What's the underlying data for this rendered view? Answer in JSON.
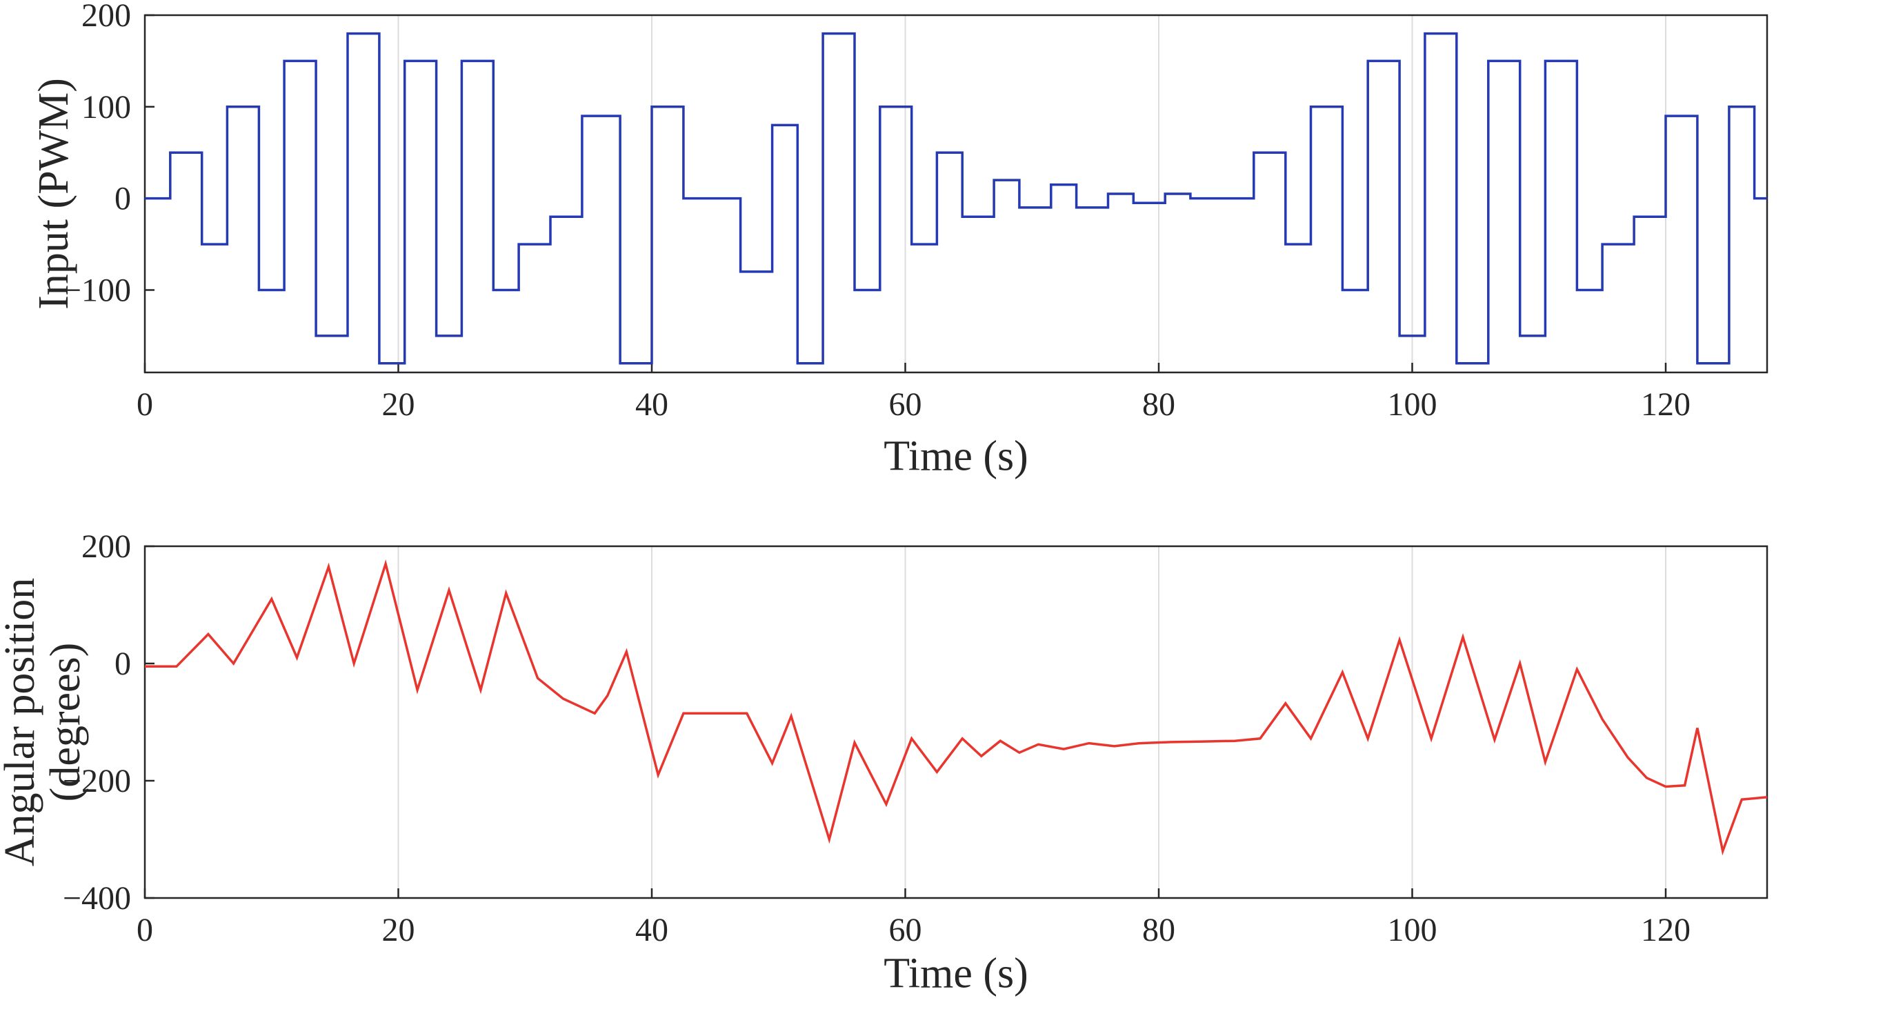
{
  "figure_background": "#ffffff",
  "style": {
    "axis_color": "#262626",
    "grid_color": "#dcdcdc",
    "tick_label_color": "#262626",
    "tick_font_size": 48
  },
  "chart_data": [
    {
      "type": "line",
      "subplot": "top",
      "line_style": "step",
      "line_color": "#2439b2",
      "xlabel": "Time (s)",
      "ylabel": [
        "Input (PWM)"
      ],
      "xlim": [
        0,
        128
      ],
      "ylim": [
        -190,
        200
      ],
      "xticks": [
        0,
        20,
        40,
        60,
        80,
        100,
        120
      ],
      "yticks": [
        -100,
        0,
        100,
        200
      ],
      "grid": "vertical",
      "legend": "none",
      "series": [
        {
          "name": "input_pwm",
          "step_points": [
            [
              0,
              0
            ],
            [
              2,
              50
            ],
            [
              4.5,
              -50
            ],
            [
              6.5,
              100
            ],
            [
              9,
              -100
            ],
            [
              11,
              150
            ],
            [
              13.5,
              -150
            ],
            [
              16,
              180
            ],
            [
              18.5,
              -180
            ],
            [
              20.5,
              150
            ],
            [
              23,
              -150
            ],
            [
              25,
              150
            ],
            [
              27.5,
              -100
            ],
            [
              29.5,
              -50
            ],
            [
              32,
              -20
            ],
            [
              34.5,
              90
            ],
            [
              37.5,
              -180
            ],
            [
              40,
              100
            ],
            [
              42.5,
              0
            ],
            [
              47,
              -80
            ],
            [
              49.5,
              80
            ],
            [
              51.5,
              -180
            ],
            [
              53.5,
              180
            ],
            [
              56,
              -100
            ],
            [
              58,
              100
            ],
            [
              60.5,
              -50
            ],
            [
              62.5,
              50
            ],
            [
              64.5,
              -20
            ],
            [
              67,
              20
            ],
            [
              69,
              -10
            ],
            [
              71.5,
              15
            ],
            [
              73.5,
              -10
            ],
            [
              76,
              5
            ],
            [
              78,
              -5
            ],
            [
              80.5,
              5
            ],
            [
              82.5,
              0
            ],
            [
              87.5,
              50
            ],
            [
              90,
              -50
            ],
            [
              92,
              100
            ],
            [
              94.5,
              -100
            ],
            [
              96.5,
              150
            ],
            [
              99,
              -150
            ],
            [
              101,
              180
            ],
            [
              103.5,
              -180
            ],
            [
              106,
              150
            ],
            [
              108.5,
              -150
            ],
            [
              110.5,
              150
            ],
            [
              113,
              -100
            ],
            [
              115,
              -50
            ],
            [
              117.5,
              -20
            ],
            [
              120,
              90
            ],
            [
              122.5,
              -180
            ],
            [
              125,
              100
            ],
            [
              127,
              0
            ]
          ]
        }
      ]
    },
    {
      "type": "line",
      "subplot": "bottom",
      "line_style": "linear",
      "line_color": "#e8362e",
      "xlabel": "Time (s)",
      "ylabel": [
        "Angular position",
        "(degrees)"
      ],
      "xlim": [
        0,
        128
      ],
      "ylim": [
        -400,
        200
      ],
      "xticks": [
        0,
        20,
        40,
        60,
        80,
        100,
        120
      ],
      "yticks": [
        -400,
        -200,
        0,
        200
      ],
      "grid": "vertical",
      "legend": "none",
      "series": [
        {
          "name": "angular_position_deg",
          "points": [
            [
              0,
              -5
            ],
            [
              2.5,
              -5
            ],
            [
              5,
              50
            ],
            [
              7,
              0
            ],
            [
              10,
              110
            ],
            [
              12,
              10
            ],
            [
              14.5,
              165
            ],
            [
              16.5,
              0
            ],
            [
              19,
              170
            ],
            [
              21.5,
              -45
            ],
            [
              24,
              125
            ],
            [
              26.5,
              -45
            ],
            [
              28.5,
              120
            ],
            [
              31,
              -25
            ],
            [
              33,
              -60
            ],
            [
              35.5,
              -85
            ],
            [
              36.5,
              -55
            ],
            [
              38,
              20
            ],
            [
              40.5,
              -190
            ],
            [
              42.5,
              -85
            ],
            [
              47.5,
              -85
            ],
            [
              49.5,
              -170
            ],
            [
              51,
              -90
            ],
            [
              54,
              -300
            ],
            [
              56,
              -135
            ],
            [
              58.5,
              -240
            ],
            [
              60.5,
              -128
            ],
            [
              62.5,
              -185
            ],
            [
              64.5,
              -128
            ],
            [
              66,
              -158
            ],
            [
              67.5,
              -132
            ],
            [
              69,
              -152
            ],
            [
              70.5,
              -138
            ],
            [
              72.5,
              -146
            ],
            [
              74.5,
              -136
            ],
            [
              76.5,
              -141
            ],
            [
              78.5,
              -136
            ],
            [
              81,
              -134
            ],
            [
              83.5,
              -133
            ],
            [
              86,
              -132
            ],
            [
              88,
              -128
            ],
            [
              90,
              -68
            ],
            [
              92,
              -128
            ],
            [
              94.5,
              -15
            ],
            [
              96.5,
              -128
            ],
            [
              99,
              40
            ],
            [
              101.5,
              -128
            ],
            [
              104,
              45
            ],
            [
              106.5,
              -130
            ],
            [
              108.5,
              0
            ],
            [
              110.5,
              -168
            ],
            [
              113,
              -10
            ],
            [
              115,
              -95
            ],
            [
              117,
              -160
            ],
            [
              118.5,
              -195
            ],
            [
              120,
              -210
            ],
            [
              121.5,
              -208
            ],
            [
              122.5,
              -110
            ],
            [
              124.5,
              -320
            ],
            [
              126,
              -232
            ],
            [
              128,
              -228
            ]
          ]
        }
      ]
    }
  ]
}
